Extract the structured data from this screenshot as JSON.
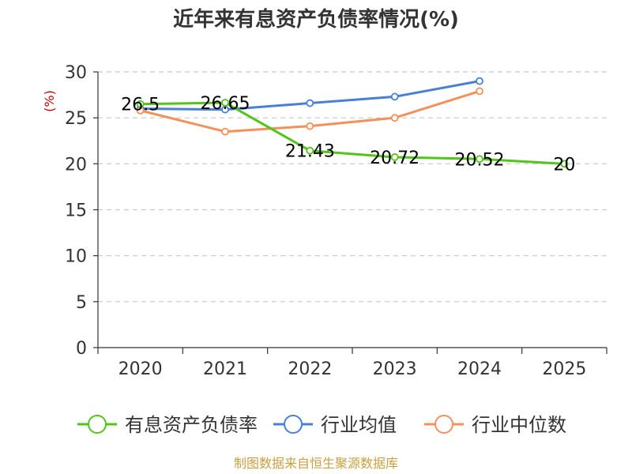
{
  "chart_data": {
    "type": "line",
    "title": "近年来有息资产负债率情况(%)",
    "ylabel": "(%)",
    "categories": [
      "2020",
      "2021",
      "2022",
      "2023",
      "2024",
      "2025"
    ],
    "ylim": [
      0,
      30
    ],
    "yticks": [
      "0",
      "5",
      "10",
      "15",
      "20",
      "25",
      "30"
    ],
    "grid": true,
    "legend_position": "bottom",
    "series": [
      {
        "name": "有息资产负债率",
        "color": "#52c41a",
        "values": [
          26.5,
          26.65,
          21.43,
          20.72,
          20.52,
          20
        ],
        "labels": [
          "26.5",
          "26.65",
          "21.43",
          "20.72",
          "20.52",
          "20"
        ]
      },
      {
        "name": "行业均值",
        "color": "#4a7fd6",
        "values": [
          26.0,
          25.9,
          26.6,
          27.3,
          29.0,
          null
        ]
      },
      {
        "name": "行业中位数",
        "color": "#f5905a",
        "values": [
          25.8,
          23.5,
          24.1,
          25.0,
          27.9,
          null
        ]
      }
    ]
  },
  "source": "制图数据来自恒生聚源数据库"
}
